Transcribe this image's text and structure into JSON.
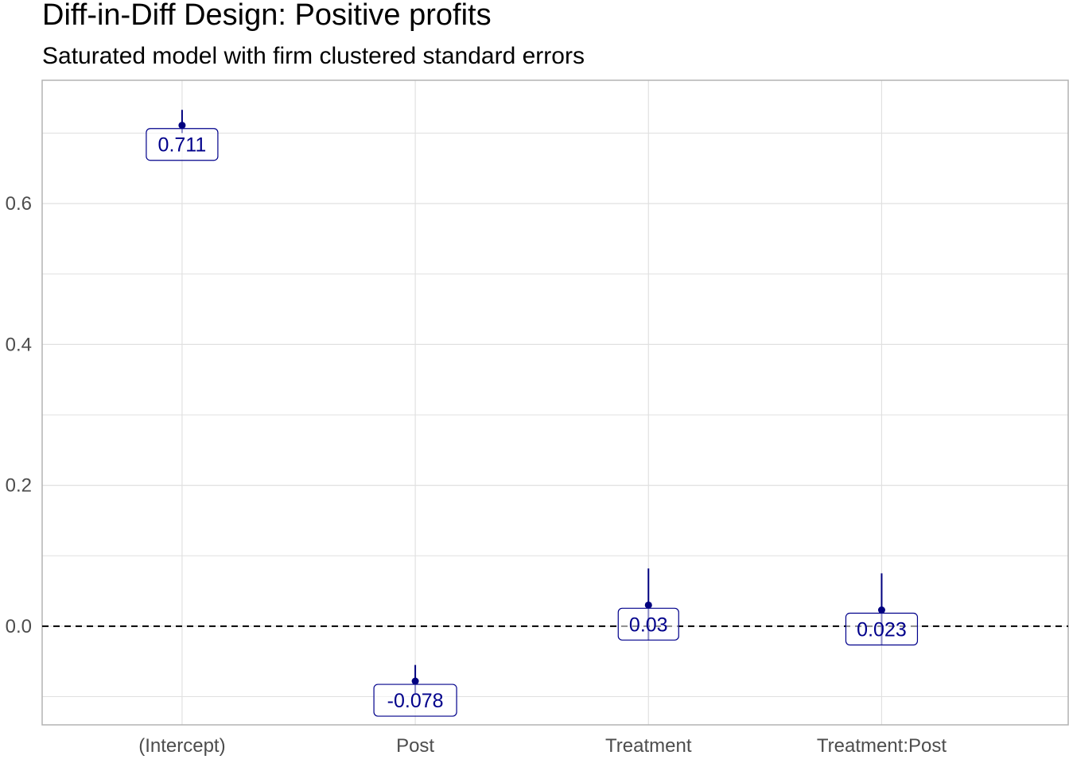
{
  "chart_data": {
    "type": "scatter",
    "title": "Diff-in-Diff Design: Positive profits",
    "subtitle": "Saturated model with firm clustered standard errors",
    "xlabel": "",
    "ylabel": "",
    "categories": [
      "(Intercept)",
      "Post",
      "Treatment",
      "Treatment:Post"
    ],
    "estimates": [
      0.711,
      -0.078,
      0.03,
      0.023
    ],
    "ci_low": [
      0.7,
      -0.095,
      -0.02,
      -0.027
    ],
    "ci_high": [
      0.733,
      -0.055,
      0.082,
      0.075
    ],
    "data_labels": [
      "0.711",
      "-0.078",
      "0.03",
      "0.023"
    ],
    "yticks": [
      0.0,
      0.2,
      0.4,
      0.6
    ],
    "ytick_labels": [
      "0.0",
      "0.2",
      "0.4",
      "0.6"
    ],
    "ylim": [
      -0.14,
      0.775
    ],
    "reference_line": 0,
    "grid": true,
    "colors": {
      "point": "#00007f",
      "label_text": "#00008b",
      "reference_line": "#000000",
      "grid": "#e0e0e0"
    }
  }
}
